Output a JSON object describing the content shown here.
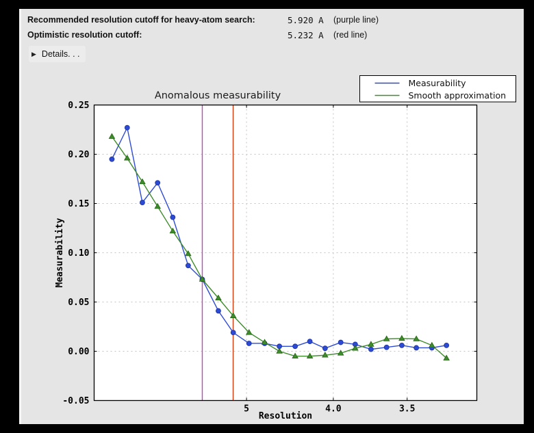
{
  "header": {
    "rows": [
      {
        "label": "Recommended resolution cutoff for heavy-atom search:",
        "value": "5.920 A",
        "note": "(purple line)"
      },
      {
        "label": "Optimistic resolution cutoff:",
        "value": "5.232 A",
        "note": "(red line)"
      }
    ],
    "details": {
      "icon": "▶",
      "label": "Details. . ."
    }
  },
  "chart_data": {
    "type": "line",
    "title": "Anomalous measurability",
    "xlabel": "Resolution",
    "ylabel": "Measurability",
    "x_axis": {
      "scale": "inverse-d-squared, resolution (Angstrom) decreasing left to right",
      "smin": 0.0005,
      "smax": 0.0997,
      "ticks": [
        {
          "d": 5.0,
          "label": "5"
        },
        {
          "d": 4.0,
          "label": "4.0"
        },
        {
          "d": 3.5,
          "label": "3.5"
        }
      ]
    },
    "y_axis": {
      "min": -0.05,
      "max": 0.25,
      "ticks": [
        {
          "v": 0.25,
          "label": "0.25"
        },
        {
          "v": 0.2,
          "label": "0.20"
        },
        {
          "v": 0.15,
          "label": "0.15"
        },
        {
          "v": 0.1,
          "label": "0.10"
        },
        {
          "v": 0.05,
          "label": "0.05"
        },
        {
          "v": 0.0,
          "label": "0.00"
        },
        {
          "v": -0.05,
          "label": "-0.05"
        }
      ]
    },
    "grid": "dashed",
    "grid_color": "#c3c3c3",
    "cutoff_lines": [
      {
        "name": "purple line",
        "resolution_A": 5.92,
        "color": "#c043c9"
      },
      {
        "name": "red line",
        "resolution_A": 5.232,
        "color": "#cc3a10"
      }
    ],
    "resolution_A": [
      14.0,
      10.5,
      8.77,
      7.68,
      6.92,
      6.34,
      5.92,
      5.53,
      5.23,
      4.96,
      4.73,
      4.54,
      4.36,
      4.21,
      4.07,
      3.94,
      3.83,
      3.72,
      3.62,
      3.53,
      3.45,
      3.37,
      3.3
    ],
    "series": [
      {
        "name": "Measurability",
        "color": "#2d4ad4",
        "edge": "#1c339e",
        "marker": "circle",
        "values": [
          0.195,
          0.227,
          0.151,
          0.171,
          0.136,
          0.087,
          0.073,
          0.041,
          0.019,
          0.008,
          0.008,
          0.005,
          0.005,
          0.01,
          0.003,
          0.009,
          0.007,
          0.002,
          0.004,
          0.006,
          0.0035,
          0.0035,
          0.006
        ]
      },
      {
        "name": "Smooth approximation",
        "color": "#3f8c2c",
        "edge": "#256414",
        "marker": "triangle",
        "values": [
          0.218,
          0.196,
          0.172,
          0.147,
          0.122,
          0.099,
          0.073,
          0.054,
          0.036,
          0.019,
          0.009,
          0.0,
          -0.005,
          -0.005,
          -0.004,
          -0.002,
          0.003,
          0.007,
          0.0125,
          0.013,
          0.0125,
          0.006,
          -0.007
        ]
      }
    ],
    "legend": {
      "position": "upper-right",
      "entries": [
        "Measurability",
        "Smooth approximation"
      ]
    }
  }
}
